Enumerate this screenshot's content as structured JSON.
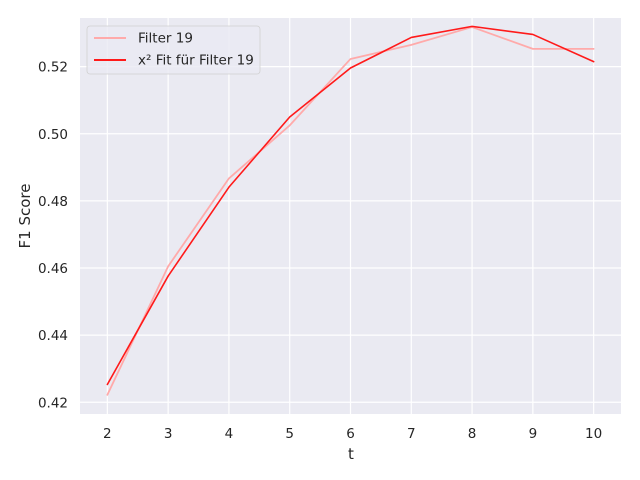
{
  "chart_data": {
    "type": "line",
    "title": "",
    "xlabel": "t",
    "ylabel": "F1 Score",
    "x": [
      2,
      3,
      4,
      5,
      6,
      7,
      8,
      9,
      10
    ],
    "xlim": [
      1.55,
      10.45
    ],
    "ylim": [
      0.4165,
      0.5345
    ],
    "xticks": [
      "2",
      "3",
      "4",
      "5",
      "6",
      "7",
      "8",
      "9",
      "10"
    ],
    "yticks": [
      "0.42",
      "0.44",
      "0.46",
      "0.48",
      "0.50",
      "0.52"
    ],
    "grid": true,
    "legend_position": "top-left",
    "series": [
      {
        "name": "Filter 19",
        "color": "#ffaaaa",
        "values": [
          0.4222,
          0.4605,
          0.4867,
          0.5025,
          0.5223,
          0.5265,
          0.5318,
          0.5253,
          0.5253
        ]
      },
      {
        "name": "x² Fit für Filter 19",
        "color": "#ff1a1a",
        "values": [
          0.4253,
          0.4576,
          0.4841,
          0.505,
          0.5196,
          0.5287,
          0.532,
          0.5296,
          0.5215
        ]
      }
    ]
  }
}
